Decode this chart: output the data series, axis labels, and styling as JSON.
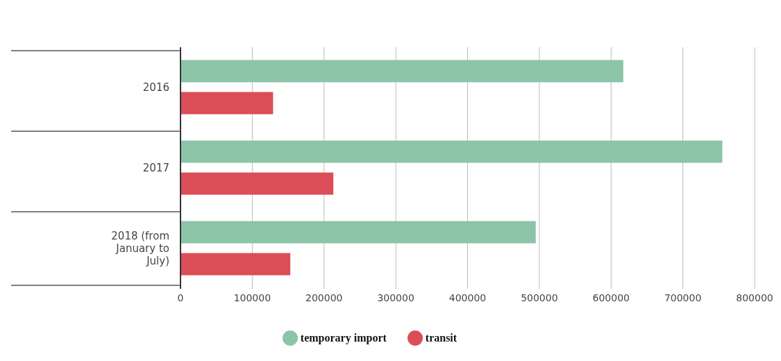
{
  "chart_data": {
    "type": "bar",
    "orientation": "horizontal",
    "categories": [
      "2016",
      "2017",
      "2018 (from January to July)"
    ],
    "series": [
      {
        "name": "temporary import",
        "color": "#8cc4a8",
        "values": [
          617000,
          755000,
          495000
        ]
      },
      {
        "name": "transit",
        "color": "#dc4e57",
        "values": [
          129000,
          213000,
          153000
        ]
      }
    ],
    "xlim": [
      0,
      800000
    ],
    "xticks": [
      0,
      100000,
      200000,
      300000,
      400000,
      500000,
      600000,
      700000,
      800000
    ],
    "grid": "x",
    "legend": "bottom"
  }
}
